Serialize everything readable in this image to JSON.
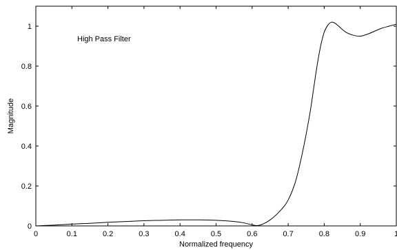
{
  "chart_data": {
    "type": "line",
    "title": "",
    "xlabel": "Normalized frequency",
    "ylabel": "Magnitude",
    "annotation": "High Pass Filter",
    "xlim": [
      0,
      1
    ],
    "ylim": [
      0,
      1.1
    ],
    "grid": false,
    "legend": "none",
    "x_ticks": [
      0,
      0.1,
      0.2,
      0.3,
      0.4,
      0.5,
      0.6,
      0.7,
      0.8,
      0.9,
      1
    ],
    "x_tick_labels": [
      "0",
      "0.1",
      "0.2",
      "0.3",
      "0.4",
      "0.5",
      "0.6",
      "0.7",
      "0.8",
      "0.9",
      "1"
    ],
    "y_ticks": [
      0,
      0.2,
      0.4,
      0.6,
      0.8,
      1
    ],
    "y_tick_labels": [
      "0",
      "0.2",
      "0.4",
      "0.6",
      "0.8",
      "1"
    ],
    "line_color": "#000000",
    "series": [
      {
        "x": [
          0,
          0.05,
          0.1,
          0.15,
          0.2,
          0.25,
          0.3,
          0.35,
          0.4,
          0.45,
          0.5,
          0.55,
          0.58,
          0.6,
          0.62,
          0.65,
          0.68,
          0.7,
          0.72,
          0.74,
          0.76,
          0.77,
          0.78,
          0.79,
          0.8,
          0.81,
          0.82,
          0.83,
          0.84,
          0.86,
          0.88,
          0.9,
          0.92,
          0.94,
          0.96,
          0.98,
          1
        ],
        "y": [
          0,
          0.004,
          0.009,
          0.013,
          0.018,
          0.022,
          0.026,
          0.028,
          0.03,
          0.03,
          0.028,
          0.022,
          0.014,
          0.005,
          0.003,
          0.03,
          0.08,
          0.13,
          0.22,
          0.37,
          0.56,
          0.68,
          0.8,
          0.9,
          0.97,
          1.005,
          1.02,
          1.015,
          1.0,
          0.97,
          0.955,
          0.95,
          0.96,
          0.975,
          0.99,
          1.0,
          1.01
        ]
      }
    ]
  }
}
